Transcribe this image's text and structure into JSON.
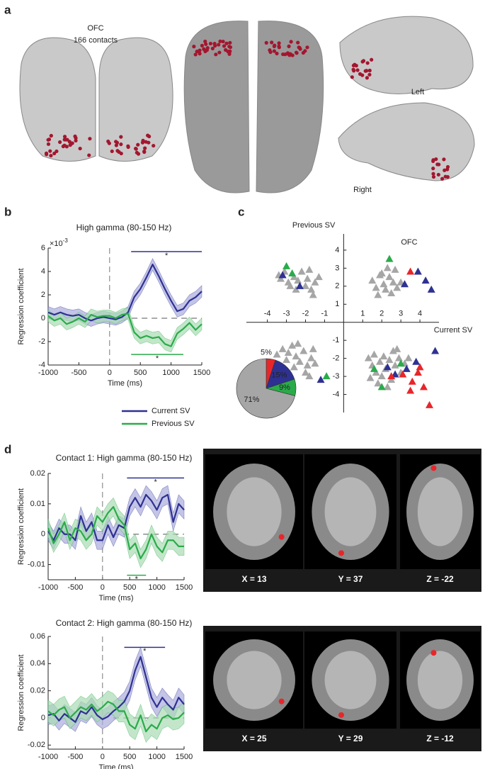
{
  "figure": {
    "panel_labels": [
      "a",
      "b",
      "c",
      "d"
    ],
    "brain": {
      "title": "OFC",
      "subtitle": "166 contacts",
      "left": "Left",
      "right": "Right"
    },
    "mri": [
      [
        "X = 13",
        "Y = 37",
        "Z = -22"
      ],
      [
        "X = 25",
        "Y = 29",
        "Z = -12"
      ]
    ]
  },
  "chart_data": [
    {
      "type": "line",
      "title": "High gamma (80-150 Hz)",
      "xlabel": "Time (ms)",
      "ylabel": "Regression coefficient",
      "y_scale_label": "×10",
      "y_scale_exponent": "-3",
      "x": [
        -1000,
        -900,
        -800,
        -700,
        -600,
        -500,
        -400,
        -300,
        -200,
        -100,
        0,
        100,
        200,
        300,
        400,
        500,
        600,
        700,
        800,
        900,
        1000,
        1100,
        1200,
        1300,
        1400,
        1500
      ],
      "xlim": [
        -1000,
        1500
      ],
      "xticks": [
        -1000,
        -500,
        0,
        500,
        1000,
        1500
      ],
      "ylim": [
        -4,
        6
      ],
      "yticks": [
        -4,
        -2,
        0,
        2,
        4,
        6
      ],
      "series": [
        {
          "name": "Current SV",
          "color": "#2e3192",
          "band_color": "#a9abdb",
          "values": [
            0.5,
            0.3,
            0.5,
            0.3,
            0.2,
            0.3,
            0.0,
            -0.2,
            0.0,
            0.1,
            0.0,
            -0.1,
            0.1,
            0.5,
            1.8,
            2.5,
            3.5,
            4.6,
            3.6,
            2.5,
            1.5,
            0.6,
            0.8,
            1.5,
            1.8,
            2.3
          ],
          "errors": [
            0.5,
            0.5,
            0.5,
            0.5,
            0.5,
            0.5,
            0.5,
            0.5,
            0.5,
            0.5,
            0.5,
            0.5,
            0.5,
            0.5,
            0.5,
            0.5,
            0.5,
            0.5,
            0.5,
            0.5,
            0.5,
            0.5,
            0.5,
            0.5,
            0.5,
            0.5
          ]
        },
        {
          "name": "Previous SV",
          "color": "#2aab4a",
          "band_color": "#a9dcb4",
          "values": [
            0.2,
            -0.2,
            0.0,
            -0.5,
            -0.3,
            0.0,
            -0.3,
            0.3,
            0.1,
            0.2,
            0.2,
            0.0,
            0.3,
            0.4,
            -1.2,
            -1.7,
            -1.5,
            -1.7,
            -1.6,
            -2.2,
            -2.4,
            -1.3,
            -0.9,
            -0.4,
            -1.0,
            -0.5
          ],
          "errors": [
            0.5,
            0.5,
            0.5,
            0.5,
            0.5,
            0.5,
            0.5,
            0.5,
            0.5,
            0.5,
            0.5,
            0.5,
            0.5,
            0.5,
            0.5,
            0.5,
            0.5,
            0.5,
            0.5,
            0.5,
            0.5,
            0.5,
            0.5,
            0.5,
            0.5,
            0.5
          ]
        }
      ],
      "significance": [
        {
          "x": [
            350,
            1500
          ],
          "y": 5.7,
          "label": "*",
          "color": "#2e3192"
        },
        {
          "x": [
            350,
            1200
          ],
          "y": -3.1,
          "label": "*",
          "color": "#2aab4a"
        }
      ]
    },
    {
      "type": "scatter",
      "xlabel": "Current SV",
      "ylabel": "Previous SV",
      "annotation": "OFC",
      "xlim": [
        -5.1,
        5
      ],
      "xticks": [
        -4,
        -3,
        -2,
        -1,
        1,
        2,
        3,
        4
      ],
      "ylim": [
        -5,
        4.9
      ],
      "yticks": [
        -4,
        -3,
        -2,
        -1,
        1,
        2,
        3,
        4
      ],
      "series": [
        {
          "color": "#a6a6a6",
          "x": [
            -3.1,
            -3.3,
            -2.9,
            -2.6,
            -2.4,
            -2.2,
            -2.0,
            -1.9,
            -1.7,
            -1.5,
            -1.3,
            -2.5,
            -1.6,
            -2.8,
            -1.8,
            -3.4,
            1.5,
            1.7,
            1.9,
            2.1,
            2.2,
            2.4,
            2.6,
            2.8,
            2.5,
            2.0,
            3.0,
            1.8,
            2.3,
            2.7,
            -3.5,
            -3.2,
            -2.9,
            -2.7,
            -2.5,
            -2.3,
            -2.1,
            -1.9,
            -1.7,
            -2.6,
            -2.0,
            -1.5,
            -1.8,
            -2.4,
            -1.6,
            -3.0,
            1.3,
            1.5,
            1.6,
            1.7,
            1.9,
            2.0,
            2.1,
            2.2,
            2.4,
            2.5,
            2.6,
            2.7,
            2.9,
            3.0,
            3.2,
            1.4,
            1.8,
            2.3,
            2.8,
            3.4
          ],
          "y": [
            2.8,
            2.4,
            2.2,
            2.5,
            2.3,
            2.8,
            2.0,
            2.4,
            1.8,
            2.2,
            2.5,
            1.8,
            1.5,
            2.0,
            2.9,
            2.6,
            2.3,
            1.9,
            2.6,
            2.1,
            1.8,
            2.5,
            2.2,
            1.9,
            1.6,
            2.7,
            2.2,
            1.5,
            3.0,
            2.9,
            -1.8,
            -1.5,
            -1.7,
            -1.3,
            -1.9,
            -2.2,
            -1.6,
            -2.4,
            -2.0,
            -2.5,
            -2.8,
            -2.3,
            -3.0,
            -1.2,
            -1.5,
            -2.1,
            -2.0,
            -2.4,
            -1.8,
            -2.8,
            -2.2,
            -3.0,
            -1.9,
            -2.6,
            -2.1,
            -3.2,
            -1.6,
            -2.4,
            -2.0,
            -2.8,
            -2.3,
            -3.1,
            -3.4,
            -3.6,
            -1.5,
            -2.0
          ]
        },
        {
          "color": "#2e3192",
          "x": [
            -3.2,
            -2.3,
            3.2,
            3.9,
            4.3,
            4.6,
            -1.2,
            2.3,
            2.7,
            3.3,
            4.8,
            3.8
          ],
          "y": [
            2.6,
            2.0,
            2.1,
            2.8,
            2.3,
            1.8,
            -3.2,
            -2.5,
            -2.9,
            -2.6,
            -1.6,
            -2.2
          ]
        },
        {
          "color": "#2aab4a",
          "x": [
            -3.0,
            -2.7,
            2.4,
            -0.9,
            1.6,
            2.0,
            3.0
          ],
          "y": [
            3.1,
            2.7,
            3.5,
            -3.0,
            -2.6,
            -3.6,
            -2.3
          ]
        },
        {
          "color": "#e8262a",
          "x": [
            3.5,
            2.5,
            3.1,
            3.6,
            3.9,
            4.2,
            4.5,
            3.5,
            4.0
          ],
          "y": [
            2.8,
            -3.0,
            -2.9,
            -3.3,
            -2.8,
            -3.6,
            -4.6,
            -3.8,
            -2.5
          ]
        }
      ]
    },
    {
      "type": "pie",
      "values": [
        5,
        15,
        9,
        71
      ],
      "value_labels": [
        "5%",
        "15%",
        "9%",
        "71%"
      ],
      "colors": [
        "#e8262a",
        "#2e3192",
        "#2aab4a",
        "#a6a6a6"
      ]
    },
    {
      "type": "line",
      "title": "Contact 1: High gamma (80-150 Hz)",
      "xlabel": "Time (ms)",
      "ylabel": "Regression coefficient",
      "x": [
        -1000,
        -900,
        -800,
        -700,
        -600,
        -500,
        -400,
        -300,
        -200,
        -100,
        0,
        100,
        200,
        300,
        400,
        500,
        600,
        700,
        800,
        900,
        1000,
        1100,
        1200,
        1300,
        1400,
        1500
      ],
      "xlim": [
        -1000,
        1500
      ],
      "xticks": [
        -1000,
        -500,
        0,
        500,
        1000,
        1500
      ],
      "ylim": [
        -0.015,
        0.02
      ],
      "yticks": [
        -0.01,
        0,
        0.01,
        0.02
      ],
      "series": [
        {
          "color": "#2e3192",
          "band_color": "#a9abdb",
          "values": [
            0.001,
            -0.002,
            0.002,
            0.0,
            0.0,
            -0.002,
            0.006,
            0.001,
            0.004,
            -0.002,
            -0.002,
            0.003,
            -0.001,
            0.003,
            0.002,
            0.009,
            0.012,
            0.009,
            0.013,
            0.011,
            0.008,
            0.012,
            0.013,
            0.004,
            0.01,
            0.008
          ],
          "errors": [
            0.003,
            0.003,
            0.003,
            0.003,
            0.003,
            0.003,
            0.003,
            0.003,
            0.003,
            0.003,
            0.003,
            0.003,
            0.003,
            0.003,
            0.003,
            0.003,
            0.003,
            0.003,
            0.003,
            0.003,
            0.003,
            0.003,
            0.003,
            0.003,
            0.003,
            0.003
          ]
        },
        {
          "color": "#2aab4a",
          "band_color": "#a9dcb4",
          "values": [
            0.002,
            -0.003,
            0.0,
            0.004,
            -0.002,
            0.002,
            0.001,
            -0.002,
            0.0,
            0.006,
            0.004,
            0.007,
            0.009,
            0.005,
            0.003,
            -0.005,
            -0.003,
            -0.008,
            -0.005,
            0.0,
            -0.004,
            -0.006,
            -0.002,
            -0.002,
            -0.004,
            -0.004
          ],
          "errors": [
            0.003,
            0.003,
            0.003,
            0.003,
            0.003,
            0.003,
            0.003,
            0.003,
            0.003,
            0.003,
            0.003,
            0.003,
            0.003,
            0.003,
            0.003,
            0.003,
            0.003,
            0.003,
            0.003,
            0.003,
            0.003,
            0.003,
            0.003,
            0.003,
            0.003,
            0.003
          ]
        }
      ],
      "significance": [
        {
          "x": [
            450,
            1500
          ],
          "y": 0.0185,
          "label": "*",
          "color": "#2e3192"
        },
        {
          "x": [
            450,
            800
          ],
          "y": -0.0135,
          "label": "*",
          "color": "#2aab4a"
        }
      ]
    },
    {
      "type": "line",
      "title": "Contact 2: High gamma (80-150 Hz)",
      "xlabel": "Time (ms)",
      "ylabel": "Regression coefficient",
      "x": [
        -1000,
        -900,
        -800,
        -700,
        -600,
        -500,
        -400,
        -300,
        -200,
        -100,
        0,
        100,
        200,
        300,
        400,
        500,
        600,
        700,
        800,
        900,
        1000,
        1100,
        1200,
        1300,
        1400,
        1500
      ],
      "xlim": [
        -1000,
        1500
      ],
      "xticks": [
        -1000,
        -500,
        0,
        500,
        1000,
        1500
      ],
      "ylim": [
        -0.023,
        0.06
      ],
      "yticks": [
        -0.02,
        0,
        0.02,
        0.04,
        0.06
      ],
      "series": [
        {
          "color": "#2e3192",
          "band_color": "#a9abdb",
          "values": [
            0.002,
            0.003,
            -0.002,
            0.003,
            0.0,
            -0.003,
            0.005,
            0.003,
            0.008,
            0.002,
            -0.001,
            0.001,
            0.005,
            0.008,
            0.012,
            0.02,
            0.035,
            0.045,
            0.03,
            0.015,
            0.008,
            0.015,
            0.01,
            0.006,
            0.015,
            0.01
          ],
          "errors": [
            0.007,
            0.007,
            0.007,
            0.007,
            0.007,
            0.007,
            0.007,
            0.007,
            0.007,
            0.007,
            0.007,
            0.007,
            0.007,
            0.007,
            0.007,
            0.007,
            0.007,
            0.007,
            0.007,
            0.007,
            0.007,
            0.007,
            0.007,
            0.007,
            0.007,
            0.007
          ]
        },
        {
          "color": "#2aab4a",
          "band_color": "#a9dcb4",
          "values": [
            0.005,
            0.002,
            0.006,
            0.008,
            0.0,
            0.004,
            0.008,
            0.006,
            0.01,
            0.005,
            0.008,
            0.012,
            0.01,
            0.005,
            0.005,
            -0.005,
            -0.008,
            0.002,
            -0.01,
            -0.005,
            -0.008,
            0.0,
            0.002,
            -0.001,
            0.0,
            0.004
          ],
          "errors": [
            0.008,
            0.008,
            0.008,
            0.008,
            0.008,
            0.008,
            0.008,
            0.008,
            0.008,
            0.008,
            0.008,
            0.008,
            0.008,
            0.008,
            0.008,
            0.008,
            0.008,
            0.008,
            0.008,
            0.008,
            0.008,
            0.008,
            0.008,
            0.008,
            0.008,
            0.008
          ]
        }
      ],
      "significance": [
        {
          "x": [
            400,
            1150
          ],
          "y": 0.052,
          "label": "*",
          "color": "#2e3192"
        }
      ]
    }
  ]
}
